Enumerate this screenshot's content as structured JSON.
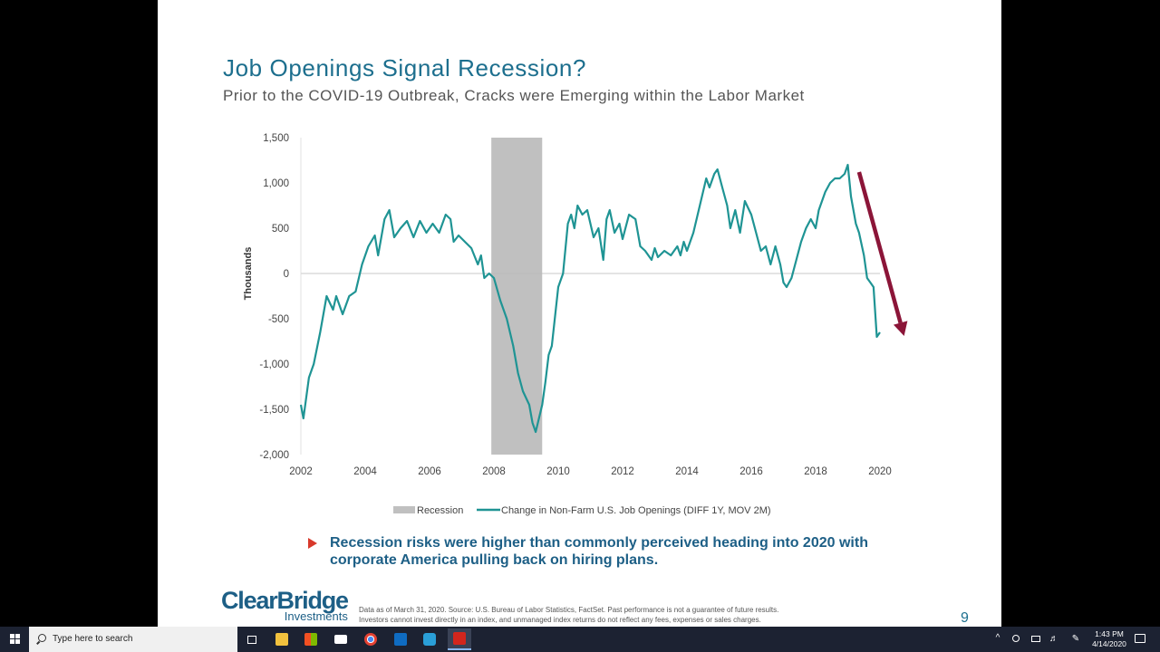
{
  "slide": {
    "title": "Job Openings Signal Recession?",
    "subtitle": "Prior to the COVID-19 Outbreak, Cracks were Emerging within the Labor Market",
    "bullet": "Recession risks were higher than commonly perceived heading into 2020 with corporate America pulling back on hiring plans.",
    "logo_main": "ClearBridge",
    "logo_sub": "Investments",
    "footnote_line1": "Data as of March 31, 2020. Source: U.S. Bureau of Labor Statistics, FactSet. Past performance is not a guarantee of future results.",
    "footnote_line2": "Investors cannot invest directly in an index, and unmanaged index returns do not reflect any fees, expenses or sales charges.",
    "page_number": "9"
  },
  "chart_data": {
    "type": "line",
    "title": "",
    "ylabel": "Thousands",
    "xlabel": "",
    "xlim": [
      2002,
      2020
    ],
    "ylim": [
      -2000,
      1500
    ],
    "y_ticks": [
      1500,
      1000,
      500,
      0,
      -500,
      -1000,
      -1500,
      -2000
    ],
    "y_tick_labels": [
      "1,500",
      "1,000",
      "500",
      "0",
      "-500",
      "-1,000",
      "-1,500",
      "-2,000"
    ],
    "x_ticks": [
      2002,
      2004,
      2006,
      2008,
      2010,
      2012,
      2014,
      2016,
      2018,
      2020
    ],
    "x_tick_labels": [
      "2002",
      "2004",
      "2006",
      "2008",
      "2010",
      "2012",
      "2014",
      "2016",
      "2018",
      "2020"
    ],
    "legend_position": "bottom",
    "recession": {
      "name": "Recession",
      "start": 2007.92,
      "end": 2009.5,
      "color": "#c0c0c0"
    },
    "series": [
      {
        "name": "Change in Non-Farm U.S. Job Openings (DIFF 1Y, MOV 2M)",
        "color": "#1f9494",
        "points": [
          [
            2002.0,
            -1450
          ],
          [
            2002.08,
            -1600
          ],
          [
            2002.25,
            -1150
          ],
          [
            2002.4,
            -1000
          ],
          [
            2002.6,
            -650
          ],
          [
            2002.8,
            -250
          ],
          [
            2003.0,
            -400
          ],
          [
            2003.1,
            -250
          ],
          [
            2003.3,
            -450
          ],
          [
            2003.5,
            -250
          ],
          [
            2003.7,
            -200
          ],
          [
            2003.9,
            100
          ],
          [
            2004.1,
            300
          ],
          [
            2004.3,
            420
          ],
          [
            2004.4,
            200
          ],
          [
            2004.6,
            600
          ],
          [
            2004.75,
            700
          ],
          [
            2004.9,
            400
          ],
          [
            2005.1,
            500
          ],
          [
            2005.3,
            580
          ],
          [
            2005.5,
            400
          ],
          [
            2005.7,
            580
          ],
          [
            2005.9,
            450
          ],
          [
            2006.1,
            550
          ],
          [
            2006.3,
            450
          ],
          [
            2006.5,
            650
          ],
          [
            2006.65,
            600
          ],
          [
            2006.75,
            350
          ],
          [
            2006.9,
            420
          ],
          [
            2007.1,
            350
          ],
          [
            2007.3,
            280
          ],
          [
            2007.5,
            100
          ],
          [
            2007.6,
            200
          ],
          [
            2007.7,
            -50
          ],
          [
            2007.85,
            0
          ],
          [
            2008.0,
            -50
          ],
          [
            2008.2,
            -300
          ],
          [
            2008.4,
            -500
          ],
          [
            2008.6,
            -800
          ],
          [
            2008.75,
            -1100
          ],
          [
            2008.9,
            -1300
          ],
          [
            2009.1,
            -1450
          ],
          [
            2009.2,
            -1650
          ],
          [
            2009.3,
            -1750
          ],
          [
            2009.4,
            -1600
          ],
          [
            2009.5,
            -1450
          ],
          [
            2009.6,
            -1200
          ],
          [
            2009.7,
            -900
          ],
          [
            2009.8,
            -800
          ],
          [
            2010.0,
            -150
          ],
          [
            2010.15,
            0
          ],
          [
            2010.3,
            550
          ],
          [
            2010.4,
            650
          ],
          [
            2010.5,
            500
          ],
          [
            2010.6,
            750
          ],
          [
            2010.75,
            650
          ],
          [
            2010.9,
            700
          ],
          [
            2011.1,
            400
          ],
          [
            2011.25,
            500
          ],
          [
            2011.4,
            150
          ],
          [
            2011.5,
            600
          ],
          [
            2011.6,
            700
          ],
          [
            2011.75,
            450
          ],
          [
            2011.9,
            550
          ],
          [
            2012.0,
            380
          ],
          [
            2012.2,
            650
          ],
          [
            2012.4,
            600
          ],
          [
            2012.55,
            300
          ],
          [
            2012.7,
            250
          ],
          [
            2012.9,
            150
          ],
          [
            2013.0,
            280
          ],
          [
            2013.1,
            180
          ],
          [
            2013.3,
            250
          ],
          [
            2013.5,
            200
          ],
          [
            2013.7,
            300
          ],
          [
            2013.8,
            200
          ],
          [
            2013.9,
            350
          ],
          [
            2014.0,
            250
          ],
          [
            2014.2,
            450
          ],
          [
            2014.4,
            750
          ],
          [
            2014.6,
            1050
          ],
          [
            2014.7,
            950
          ],
          [
            2014.85,
            1100
          ],
          [
            2014.95,
            1150
          ],
          [
            2015.1,
            950
          ],
          [
            2015.25,
            750
          ],
          [
            2015.35,
            500
          ],
          [
            2015.5,
            700
          ],
          [
            2015.65,
            450
          ],
          [
            2015.8,
            800
          ],
          [
            2016.0,
            650
          ],
          [
            2016.15,
            450
          ],
          [
            2016.3,
            250
          ],
          [
            2016.45,
            300
          ],
          [
            2016.6,
            100
          ],
          [
            2016.75,
            300
          ],
          [
            2016.9,
            100
          ],
          [
            2017.0,
            -100
          ],
          [
            2017.1,
            -150
          ],
          [
            2017.25,
            -50
          ],
          [
            2017.4,
            150
          ],
          [
            2017.55,
            350
          ],
          [
            2017.7,
            500
          ],
          [
            2017.85,
            600
          ],
          [
            2018.0,
            500
          ],
          [
            2018.1,
            700
          ],
          [
            2018.3,
            900
          ],
          [
            2018.45,
            1000
          ],
          [
            2018.6,
            1050
          ],
          [
            2018.75,
            1050
          ],
          [
            2018.9,
            1100
          ],
          [
            2019.0,
            1200
          ],
          [
            2019.1,
            850
          ],
          [
            2019.25,
            550
          ],
          [
            2019.35,
            450
          ],
          [
            2019.5,
            200
          ],
          [
            2019.6,
            -50
          ],
          [
            2019.7,
            -100
          ],
          [
            2019.8,
            -150
          ],
          [
            2019.9,
            -700
          ],
          [
            2020.0,
            -650
          ]
        ]
      }
    ],
    "annotation_arrow": {
      "from": [
        2019.35,
        1120
      ],
      "to": [
        2020.75,
        -690
      ],
      "color": "#8b1538"
    }
  },
  "taskbar": {
    "search_placeholder": "Type here to search",
    "clock_time": "1:43 PM",
    "clock_date": "4/14/2020"
  }
}
